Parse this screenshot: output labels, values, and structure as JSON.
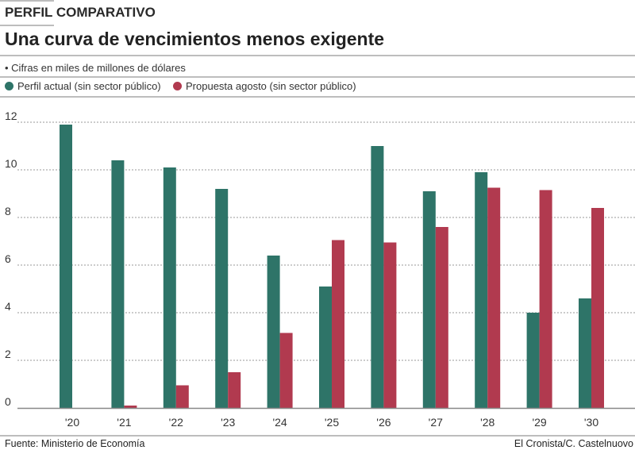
{
  "header": {
    "kicker": "PERFIL COMPARATIVO",
    "title": "Una curva de vencimientos menos exigente",
    "subtitle": "• Cifras en miles de millones de dólares"
  },
  "footer": {
    "source": "Fuente: Ministerio de Economía",
    "credit": "El Cronista/C. Castelnuovo"
  },
  "colors": {
    "actual": "#2e7468",
    "propuesta": "#b13a4f",
    "grid": "#9a9a9a"
  },
  "chart_data": {
    "type": "bar",
    "title": "Una curva de vencimientos menos exigente",
    "xlabel": "",
    "ylabel": "Cifras en miles de millones de dólares",
    "ylim": [
      0,
      12
    ],
    "yticks": [
      0,
      2,
      4,
      6,
      8,
      10,
      12
    ],
    "grid": true,
    "legend": "top-left",
    "categories": [
      "'20",
      "'21",
      "'22",
      "'23",
      "'24",
      "'25",
      "'26",
      "'27",
      "'28",
      "'29",
      "'30"
    ],
    "series": [
      {
        "name": "Perfil actual (sin sector público)",
        "values": [
          11.9,
          10.4,
          10.1,
          9.2,
          6.4,
          5.1,
          11.0,
          9.1,
          9.9,
          4.0,
          4.6
        ]
      },
      {
        "name": "Propuesta agosto (sin sector público)",
        "values": [
          0,
          0.1,
          0.95,
          1.5,
          3.15,
          7.05,
          6.95,
          7.6,
          9.25,
          9.15,
          8.4
        ]
      }
    ]
  }
}
